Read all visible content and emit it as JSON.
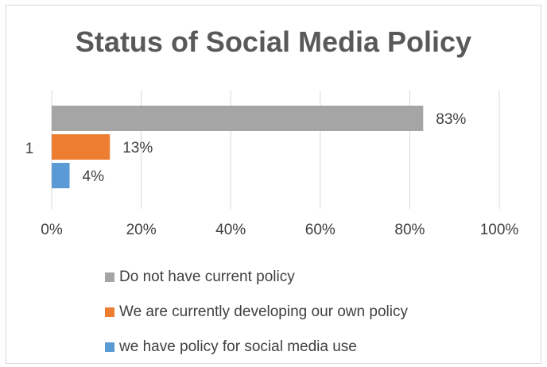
{
  "chart_data": {
    "type": "bar",
    "orientation": "horizontal",
    "title": "Status of Social Media Policy",
    "categories": [
      "1"
    ],
    "series": [
      {
        "name": "Do not have current policy",
        "values": [
          83
        ],
        "label": "83%",
        "color": "#a5a5a5"
      },
      {
        "name": "We are currently developing our own policy",
        "values": [
          13
        ],
        "label": "13%",
        "color": "#ed7d31"
      },
      {
        "name": "we have policy for social media use",
        "values": [
          4
        ],
        "label": "4%",
        "color": "#5b9bd5"
      }
    ],
    "xlim": [
      0,
      100
    ],
    "x_ticks": [
      "0%",
      "20%",
      "40%",
      "60%",
      "80%",
      "100%"
    ],
    "grid": true,
    "legend_position": "bottom",
    "xlabel": "",
    "ylabel": ""
  }
}
